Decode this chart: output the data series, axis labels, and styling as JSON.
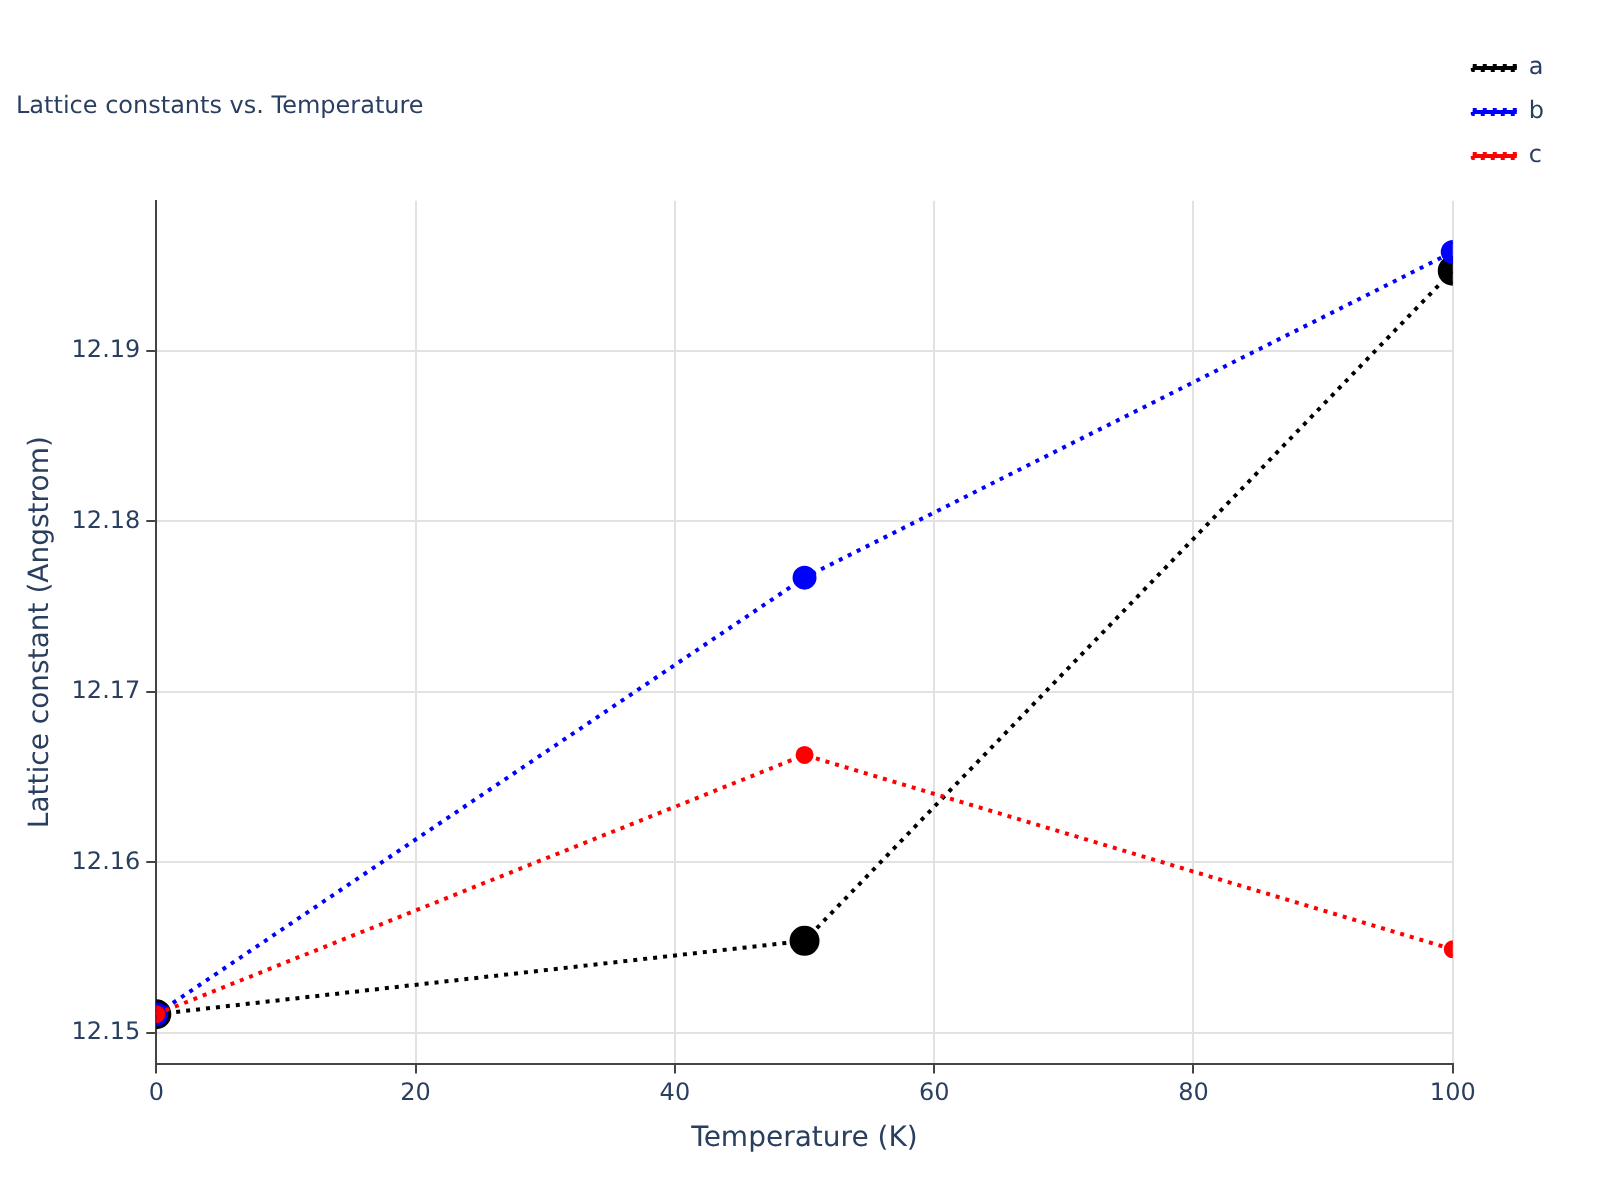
{
  "chart_data": {
    "type": "line",
    "title": "Lattice constants vs. Temperature",
    "xlabel": "Temperature (K)",
    "ylabel": "Lattice constant (Angstrom)",
    "x": [
      0,
      50,
      100
    ],
    "series": [
      {
        "name": "a",
        "color": "#000000",
        "values": [
          12.1511,
          12.1554,
          12.1947
        ]
      },
      {
        "name": "b",
        "color": "#0000ff",
        "values": [
          12.1511,
          12.1767,
          12.1958
        ]
      },
      {
        "name": "c",
        "color": "#ff0000",
        "values": [
          12.1511,
          12.1663,
          12.1549
        ]
      }
    ],
    "xlim": [
      0,
      100
    ],
    "xticks": [
      0,
      20,
      40,
      60,
      80,
      100
    ],
    "ylim": [
      12.1482,
      12.1988
    ],
    "yticks": [
      12.15,
      12.16,
      12.17,
      12.18,
      12.19
    ],
    "grid": true,
    "legend": "top right",
    "marker": "circle",
    "line_style": "dotted"
  }
}
